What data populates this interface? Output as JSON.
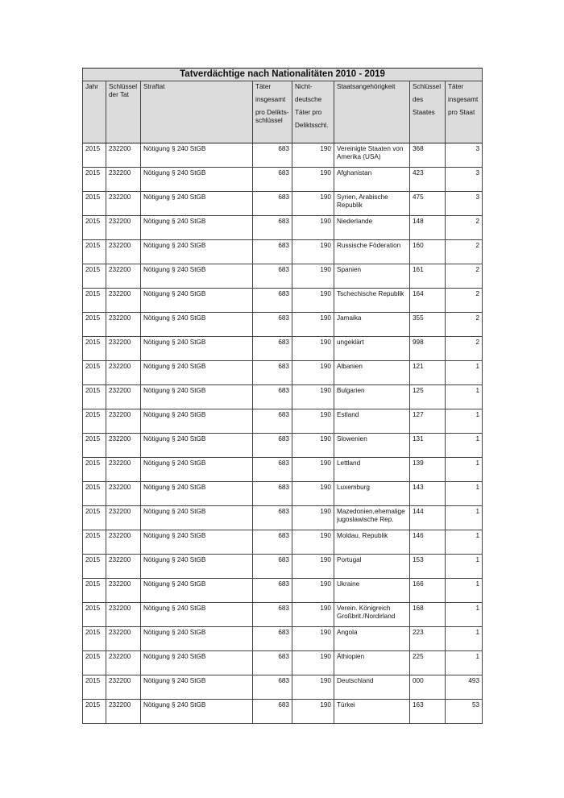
{
  "title": "Tatverdächtige nach Nationalitäten 2010 - 2019",
  "headers": {
    "jahr": "Jahr",
    "schluessel_tat": "Schlüssel der Tat",
    "straftat": "Straftat",
    "taeter_1": "Täter",
    "taeter_2": "insgesamt",
    "taeter_3": "pro Delikts-schlüssel",
    "nd_1": "Nicht-",
    "nd_2": "deutsche",
    "nd_3": "Täter pro",
    "nd_4": "Deliktsschl.",
    "staat": "Staatsangehörigkeit",
    "ss_1": "Schlüssel",
    "ss_2": "des",
    "ss_3": "Staates",
    "tps_1": "Täter",
    "tps_2": "insgesamt",
    "tps_3": "pro Staat"
  },
  "rows": [
    [
      "2015",
      "232200",
      "Nötigung § 240 StGB",
      "683",
      "190",
      "Vereinigte Staaten von Amerika (USA)",
      "368",
      "3"
    ],
    [
      "2015",
      "232200",
      "Nötigung § 240 StGB",
      "683",
      "190",
      "Afghanistan",
      "423",
      "3"
    ],
    [
      "2015",
      "232200",
      "Nötigung § 240 StGB",
      "683",
      "190",
      "Syrien, Arabische Republik",
      "475",
      "3"
    ],
    [
      "2015",
      "232200",
      "Nötigung § 240 StGB",
      "683",
      "190",
      "Niederlande",
      "148",
      "2"
    ],
    [
      "2015",
      "232200",
      "Nötigung § 240 StGB",
      "683",
      "190",
      "Russische Föderation",
      "160",
      "2"
    ],
    [
      "2015",
      "232200",
      "Nötigung § 240 StGB",
      "683",
      "190",
      "Spanien",
      "161",
      "2"
    ],
    [
      "2015",
      "232200",
      "Nötigung § 240 StGB",
      "683",
      "190",
      "Tschechische Republik",
      "164",
      "2"
    ],
    [
      "2015",
      "232200",
      "Nötigung § 240 StGB",
      "683",
      "190",
      "Jamaika",
      "355",
      "2"
    ],
    [
      "2015",
      "232200",
      "Nötigung § 240 StGB",
      "683",
      "190",
      "ungeklärt",
      "998",
      "2"
    ],
    [
      "2015",
      "232200",
      "Nötigung § 240 StGB",
      "683",
      "190",
      "Albanien",
      "121",
      "1"
    ],
    [
      "2015",
      "232200",
      "Nötigung § 240 StGB",
      "683",
      "190",
      "Bulgarien",
      "125",
      "1"
    ],
    [
      "2015",
      "232200",
      "Nötigung § 240 StGB",
      "683",
      "190",
      "Estland",
      "127",
      "1"
    ],
    [
      "2015",
      "232200",
      "Nötigung § 240 StGB",
      "683",
      "190",
      "Slowenien",
      "131",
      "1"
    ],
    [
      "2015",
      "232200",
      "Nötigung § 240 StGB",
      "683",
      "190",
      "Lettland",
      "139",
      "1"
    ],
    [
      "2015",
      "232200",
      "Nötigung § 240 StGB",
      "683",
      "190",
      "Luxemburg",
      "143",
      "1"
    ],
    [
      "2015",
      "232200",
      "Nötigung § 240 StGB",
      "683",
      "190",
      "Mazedonien,ehemalige jugoslawische Rep.",
      "144",
      "1"
    ],
    [
      "2015",
      "232200",
      "Nötigung § 240 StGB",
      "683",
      "190",
      "Moldau, Republik",
      "146",
      "1"
    ],
    [
      "2015",
      "232200",
      "Nötigung § 240 StGB",
      "683",
      "190",
      "Portugal",
      "153",
      "1"
    ],
    [
      "2015",
      "232200",
      "Nötigung § 240 StGB",
      "683",
      "190",
      "Ukraine",
      "166",
      "1"
    ],
    [
      "2015",
      "232200",
      "Nötigung § 240 StGB",
      "683",
      "190",
      "Verein. Königreich Großbrit./Nordirland",
      "168",
      "1"
    ],
    [
      "2015",
      "232200",
      "Nötigung § 240 StGB",
      "683",
      "190",
      "Angola",
      "223",
      "1"
    ],
    [
      "2015",
      "232200",
      "Nötigung § 240 StGB",
      "683",
      "190",
      "Äthiopien",
      "225",
      "1"
    ],
    [
      "2015",
      "232200",
      "Nötigung § 240 StGB",
      "683",
      "190",
      "Deutschland",
      "000",
      "493"
    ],
    [
      "2015",
      "232200",
      "Nötigung § 240 StGB",
      "683",
      "190",
      "Türkei",
      "163",
      "53"
    ]
  ]
}
